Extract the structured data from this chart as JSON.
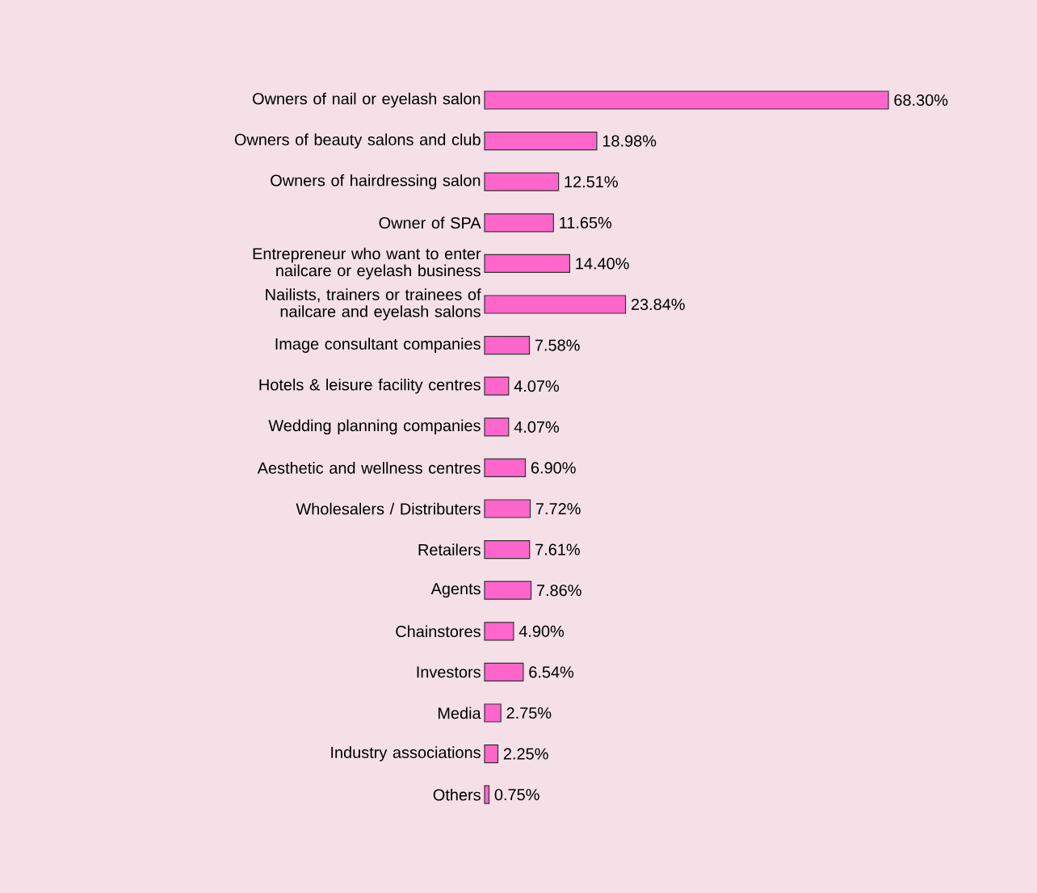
{
  "chart_data": {
    "type": "bar",
    "orientation": "horizontal",
    "tick_labels": "y",
    "color": "#ff66cc",
    "categories": [
      "Owners of nail or eyelash salon",
      "Owners of beauty salons and club",
      "Owners of hairdressing salon",
      "Owner of SPA",
      "Entrepreneur who want to enter nailcare or eyelash business",
      "Nailists, trainers or trainees of nailcare and eyelash salons",
      "Image consultant companies",
      "Hotels & leisure facility centres",
      "Wedding planning companies",
      "Aesthetic and wellness centres",
      "Wholesalers / Distributers",
      "Retailers",
      "Agents",
      "Chainstores",
      "Investors",
      "Media",
      "Industry associations",
      "Others"
    ],
    "values": [
      68.3,
      18.98,
      12.51,
      11.65,
      14.4,
      23.84,
      7.58,
      4.07,
      4.07,
      6.9,
      7.72,
      7.61,
      7.86,
      4.9,
      6.54,
      2.75,
      2.25,
      0.75
    ],
    "value_labels": [
      "68.30%",
      "18.98%",
      "12.51%",
      "11.65%",
      "14.40%",
      "23.84%",
      "7.58%",
      "4.07%",
      "4.07%",
      "6.90%",
      "7.72%",
      "7.61%",
      "7.86%",
      "4.90%",
      "6.54%",
      "2.75%",
      "2.25%",
      "0.75%"
    ]
  }
}
